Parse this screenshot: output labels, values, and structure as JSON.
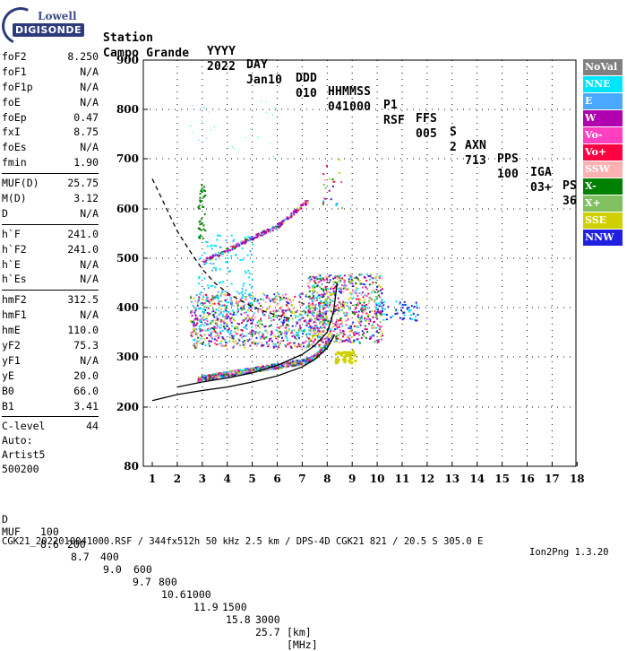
{
  "logo": {
    "line1": "Lowell",
    "line2": "DIGISONDE"
  },
  "header": {
    "labels": {
      "station": "Station",
      "yyyy": "YYYY",
      "day": "DAY",
      "ddd": "DDD",
      "hhmmss": "HHMMSS",
      "p1": "P1",
      "ffs": "FFS",
      "s": "S",
      "axn": "AXN",
      "pps": "PPS",
      "iga": "IGA",
      "ps": "PS"
    },
    "values": {
      "station": "Campo Grande",
      "yyyy": "2022",
      "day": "Jan10",
      "ddd": "010",
      "hhmmss": "041000",
      "p1": "RSF",
      "ffs": "005",
      "s": "2",
      "axn": "713",
      "pps": "100",
      "iga": "03+",
      "ps": "36"
    }
  },
  "params": [
    [
      {
        "label": "foF2",
        "value": "8.250"
      },
      {
        "label": "foF1",
        "value": "N/A"
      },
      {
        "label": "foF1p",
        "value": "N/A"
      },
      {
        "label": "foE",
        "value": "N/A"
      },
      {
        "label": "foEp",
        "value": "0.47"
      },
      {
        "label": "fxI",
        "value": "8.75"
      },
      {
        "label": "foEs",
        "value": "N/A"
      },
      {
        "label": "fmin",
        "value": "1.90"
      }
    ],
    [
      {
        "label": "MUF(D)",
        "value": "25.75"
      },
      {
        "label": "M(D)",
        "value": "3.12"
      },
      {
        "label": "D",
        "value": "N/A"
      }
    ],
    [
      {
        "label": "h`F",
        "value": "241.0"
      },
      {
        "label": "h`F2",
        "value": "241.0"
      },
      {
        "label": "h`E",
        "value": "N/A"
      },
      {
        "label": "h`Es",
        "value": "N/A"
      }
    ],
    [
      {
        "label": "hmF2",
        "value": "312.5"
      },
      {
        "label": "hmF1",
        "value": "N/A"
      },
      {
        "label": "hmE",
        "value": "110.0"
      },
      {
        "label": "yF2",
        "value": "75.3"
      },
      {
        "label": "yF1",
        "value": "N/A"
      },
      {
        "label": "yE",
        "value": "20.0"
      },
      {
        "label": "B0",
        "value": "66.0"
      },
      {
        "label": "B1",
        "value": "3.41"
      }
    ],
    [
      {
        "label": "C-level",
        "value": "44"
      }
    ]
  ],
  "autoscale": {
    "line1": "Auto:",
    "line2": "Artist5",
    "line3": "500200"
  },
  "legend": [
    {
      "label": "NoVal",
      "color": "#808080"
    },
    {
      "label": "NNE",
      "color": "#00e5ff"
    },
    {
      "label": "E",
      "color": "#4aa8ff"
    },
    {
      "label": "W",
      "color": "#b000b0"
    },
    {
      "label": "Vo-",
      "color": "#ff40c0"
    },
    {
      "label": "Vo+",
      "color": "#ff0040"
    },
    {
      "label": "SSW",
      "color": "#ffb0b0"
    },
    {
      "label": "X-",
      "color": "#008000"
    },
    {
      "label": "X+",
      "color": "#80c060"
    },
    {
      "label": "SSE",
      "color": "#d0d000"
    },
    {
      "label": "NNW",
      "color": "#2020e0"
    }
  ],
  "chart_data": {
    "type": "scatter",
    "title": "",
    "xlabel": "",
    "ylabel": "",
    "xlim": [
      1,
      18
    ],
    "ylim": [
      80,
      900
    ],
    "x_ticks": [
      "1",
      "2",
      "3",
      "4",
      "5",
      "6",
      "7",
      "8",
      "9",
      "10",
      "11",
      "12",
      "13",
      "14",
      "15",
      "16",
      "17",
      "18"
    ],
    "y_ticks": [
      "80",
      "200",
      "300",
      "400",
      "500",
      "600",
      "700",
      "800",
      "900"
    ],
    "y_tick_values": [
      80,
      200,
      300,
      400,
      500,
      600,
      700,
      800,
      900
    ],
    "series": [
      {
        "color": "#000000",
        "values": [
          [
            1,
            213
          ],
          [
            2,
            225
          ],
          [
            3,
            233
          ],
          [
            4,
            240
          ],
          [
            5,
            250
          ],
          [
            6,
            262
          ],
          [
            7,
            280
          ],
          [
            7.5,
            295
          ],
          [
            8,
            318
          ],
          [
            8.3,
            345
          ]
        ]
      },
      {
        "color": "#000000",
        "values": [
          [
            1,
            660
          ],
          [
            1.5,
            608
          ],
          [
            2,
            555
          ],
          [
            2.5,
            515
          ],
          [
            3,
            478
          ],
          [
            3.5,
            450
          ],
          [
            4,
            430
          ],
          [
            4.5,
            415
          ],
          [
            5,
            402
          ],
          [
            5.5,
            392
          ],
          [
            6,
            384
          ],
          [
            6.5,
            378
          ]
        ]
      },
      {
        "color": "#000000",
        "values": [
          [
            2,
            240
          ],
          [
            3,
            250
          ],
          [
            4,
            258
          ],
          [
            5,
            268
          ],
          [
            6,
            283
          ],
          [
            7,
            305
          ],
          [
            7.5,
            323
          ],
          [
            8,
            350
          ],
          [
            8.25,
            390
          ],
          [
            8.4,
            450
          ]
        ]
      }
    ]
  },
  "footer": {
    "d_label": "D",
    "d_values": [
      "100",
      "200",
      "400",
      "600",
      "800",
      "1000",
      "1500",
      "3000"
    ],
    "d_unit": "[km]",
    "muf_label": "MUF",
    "muf_values": [
      "8.6",
      "8.7",
      "9.0",
      "9.7",
      "10.6",
      "11.9",
      "15.8",
      "25.7"
    ],
    "muf_unit": "[MHz]",
    "info": "CGK21_2022010041000.RSF / 344fx512h 50 kHz 2.5 km / DPS-4D CGK21 821 / 20.5 S 305.0 E",
    "version": "Ion2Png 1.3.20"
  }
}
